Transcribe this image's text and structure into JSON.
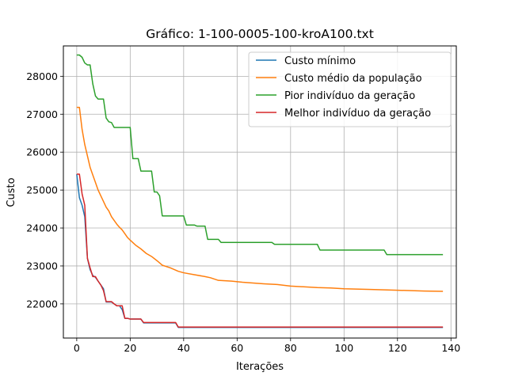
{
  "chart_data": {
    "type": "line",
    "title": "Gráfico: 1-100-0005-100-kroA100.txt",
    "xlabel": "Iterações",
    "ylabel": "Custo",
    "xlim": [
      -5,
      142
    ],
    "ylim": [
      21100,
      28800
    ],
    "xticks": [
      0,
      20,
      40,
      60,
      80,
      100,
      120,
      140
    ],
    "yticks": [
      22000,
      23000,
      24000,
      25000,
      26000,
      27000,
      28000
    ],
    "grid": true,
    "legend_position": "top-right",
    "series": [
      {
        "name": "Custo mínimo",
        "color": "#1f77b4",
        "points": [
          [
            0,
            25420
          ],
          [
            1,
            24800
          ],
          [
            2,
            24600
          ],
          [
            3,
            24300
          ],
          [
            4,
            23200
          ],
          [
            5,
            22900
          ],
          [
            6,
            22750
          ],
          [
            7,
            22700
          ],
          [
            8,
            22600
          ],
          [
            9,
            22500
          ],
          [
            10,
            22400
          ],
          [
            11,
            22050
          ],
          [
            12,
            22050
          ],
          [
            13,
            22050
          ],
          [
            14,
            22000
          ],
          [
            15,
            21950
          ],
          [
            16,
            21950
          ],
          [
            17,
            21850
          ],
          [
            18,
            21620
          ],
          [
            19,
            21620
          ],
          [
            20,
            21600
          ],
          [
            24,
            21600
          ],
          [
            25,
            21500
          ],
          [
            37,
            21500
          ],
          [
            38,
            21380
          ],
          [
            137,
            21380
          ]
        ]
      },
      {
        "name": "Custo médio da população",
        "color": "#ff7f0e",
        "points": [
          [
            0,
            27180
          ],
          [
            1,
            27180
          ],
          [
            2,
            26600
          ],
          [
            3,
            26200
          ],
          [
            4,
            25900
          ],
          [
            5,
            25600
          ],
          [
            6,
            25400
          ],
          [
            7,
            25200
          ],
          [
            8,
            25000
          ],
          [
            9,
            24850
          ],
          [
            10,
            24700
          ],
          [
            11,
            24550
          ],
          [
            12,
            24450
          ],
          [
            13,
            24300
          ],
          [
            14,
            24200
          ],
          [
            15,
            24100
          ],
          [
            16,
            24020
          ],
          [
            17,
            23950
          ],
          [
            18,
            23850
          ],
          [
            19,
            23750
          ],
          [
            20,
            23680
          ],
          [
            22,
            23550
          ],
          [
            24,
            23450
          ],
          [
            26,
            23330
          ],
          [
            28,
            23250
          ],
          [
            30,
            23140
          ],
          [
            32,
            23020
          ],
          [
            35,
            22950
          ],
          [
            38,
            22860
          ],
          [
            40,
            22820
          ],
          [
            44,
            22770
          ],
          [
            48,
            22720
          ],
          [
            50,
            22690
          ],
          [
            53,
            22620
          ],
          [
            58,
            22600
          ],
          [
            62,
            22570
          ],
          [
            70,
            22530
          ],
          [
            75,
            22510
          ],
          [
            80,
            22470
          ],
          [
            90,
            22430
          ],
          [
            95,
            22420
          ],
          [
            100,
            22400
          ],
          [
            110,
            22380
          ],
          [
            120,
            22360
          ],
          [
            130,
            22340
          ],
          [
            137,
            22330
          ]
        ]
      },
      {
        "name": "Pior indivíduo da geração",
        "color": "#2ca02c",
        "points": [
          [
            0,
            28560
          ],
          [
            1,
            28560
          ],
          [
            2,
            28500
          ],
          [
            3,
            28350
          ],
          [
            4,
            28300
          ],
          [
            5,
            28300
          ],
          [
            6,
            27800
          ],
          [
            7,
            27480
          ],
          [
            8,
            27400
          ],
          [
            10,
            27400
          ],
          [
            11,
            26900
          ],
          [
            12,
            26800
          ],
          [
            13,
            26780
          ],
          [
            14,
            26650
          ],
          [
            20,
            26650
          ],
          [
            21,
            25830
          ],
          [
            23,
            25830
          ],
          [
            24,
            25500
          ],
          [
            28,
            25500
          ],
          [
            29,
            24950
          ],
          [
            30,
            24950
          ],
          [
            31,
            24850
          ],
          [
            32,
            24320
          ],
          [
            40,
            24320
          ],
          [
            41,
            24080
          ],
          [
            44,
            24080
          ],
          [
            45,
            24050
          ],
          [
            48,
            24050
          ],
          [
            49,
            23700
          ],
          [
            53,
            23700
          ],
          [
            54,
            23620
          ],
          [
            73,
            23620
          ],
          [
            74,
            23570
          ],
          [
            90,
            23570
          ],
          [
            91,
            23420
          ],
          [
            115,
            23420
          ],
          [
            116,
            23300
          ],
          [
            137,
            23300
          ]
        ]
      },
      {
        "name": "Melhor indivíduo da geração",
        "color": "#d62728",
        "points": [
          [
            0,
            25420
          ],
          [
            1,
            25420
          ],
          [
            2,
            24900
          ],
          [
            3,
            24600
          ],
          [
            4,
            23200
          ],
          [
            5,
            22950
          ],
          [
            6,
            22720
          ],
          [
            7,
            22720
          ],
          [
            8,
            22600
          ],
          [
            9,
            22500
          ],
          [
            10,
            22350
          ],
          [
            11,
            22060
          ],
          [
            12,
            22060
          ],
          [
            13,
            22060
          ],
          [
            14,
            22000
          ],
          [
            15,
            21950
          ],
          [
            16,
            21950
          ],
          [
            17,
            21950
          ],
          [
            18,
            21620
          ],
          [
            19,
            21620
          ],
          [
            20,
            21600
          ],
          [
            24,
            21600
          ],
          [
            25,
            21510
          ],
          [
            37,
            21510
          ],
          [
            38,
            21390
          ],
          [
            137,
            21390
          ]
        ]
      }
    ]
  }
}
